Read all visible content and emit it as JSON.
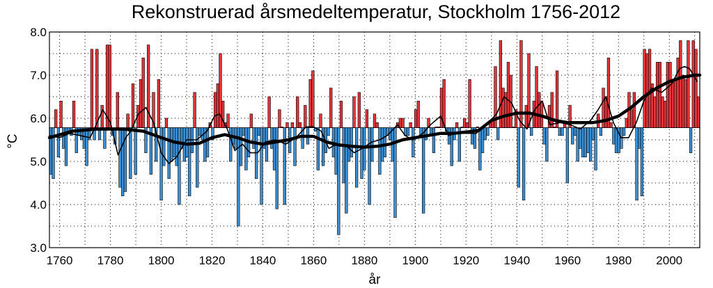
{
  "chart_data": {
    "type": "bar",
    "title": "Rekonstruerad årsmedeltemperatur, Stockholm 1756-2012",
    "xlabel": "år",
    "ylabel": "°C",
    "xlim": [
      1756,
      2012
    ],
    "ylim": [
      3.0,
      8.0
    ],
    "baseline": 5.78,
    "grid": true,
    "x_ticks": [
      "1760",
      "1780",
      "1800",
      "1820",
      "1840",
      "1860",
      "1880",
      "1900",
      "1920",
      "1940",
      "1960",
      "1980",
      "2000"
    ],
    "y_ticks": [
      "3.0",
      "4.0",
      "5.0",
      "6.0",
      "7.0",
      "8.0"
    ],
    "colors": {
      "above": "#e0353b",
      "below": "#3d8fd1",
      "bar_edge": "#000000",
      "grid": "#000000"
    },
    "series": [
      {
        "type": "bar",
        "x_start": 1756,
        "values": [
          4.7,
          4.6,
          6.2,
          5.1,
          6.4,
          5.3,
          4.9,
          5.7,
          5.6,
          6.4,
          5.2,
          5.6,
          5.5,
          5.3,
          4.9,
          5.5,
          7.6,
          5.5,
          7.6,
          5.5,
          6.3,
          5.3,
          7.7,
          7.7,
          5.6,
          5.4,
          6.6,
          4.4,
          4.2,
          4.3,
          6.1,
          4.6,
          6.8,
          4.7,
          6.3,
          6.9,
          7.4,
          5.2,
          7.7,
          4.7,
          6.6,
          5.0,
          6.9,
          4.1,
          4.9,
          6.0,
          4.6,
          5.0,
          5.1,
          4.9,
          4.0,
          5.3,
          5.0,
          5.1,
          4.2,
          5.2,
          6.6,
          4.4,
          5.6,
          5.5,
          5.0,
          5.1,
          5.9,
          5.5,
          6.6,
          6.8,
          7.5,
          6.4,
          5.9,
          6.1,
          5.0,
          5.4,
          5.3,
          3.5,
          4.9,
          5.6,
          4.8,
          5.1,
          6.1,
          5.3,
          4.6,
          5.6,
          4.0,
          5.3,
          5.0,
          6.5,
          5.3,
          4.8,
          3.9,
          6.2,
          5.8,
          4.0,
          5.9,
          5.2,
          5.9,
          4.9,
          6.5,
          5.9,
          5.3,
          6.3,
          5.4,
          6.9,
          7.1,
          5.7,
          4.8,
          6.1,
          4.9,
          5.2,
          5.6,
          6.7,
          5.1,
          4.7,
          3.3,
          6.4,
          4.5,
          3.8,
          5.0,
          5.1,
          6.5,
          4.4,
          6.6,
          4.6,
          4.8,
          6.2,
          4.0,
          5.0,
          6.1,
          5.9,
          4.7,
          5.0,
          5.1,
          5.6,
          5.5,
          5.0,
          3.7,
          5.9,
          6.0,
          6.0,
          5.6,
          5.6,
          5.9,
          5.1,
          6.2,
          6.4,
          5.6,
          3.8,
          5.5,
          6.0,
          5.6,
          5.2,
          5.8,
          5.8,
          6.7,
          6.9,
          5.7,
          5.4,
          4.9,
          5.5,
          5.9,
          5.0,
          5.8,
          6.0,
          5.9,
          6.9,
          5.4,
          5.3,
          5.8,
          4.8,
          5.2,
          5.5,
          5.6,
          5.9,
          6.0,
          7.2,
          5.5,
          7.8,
          6.7,
          6.6,
          7.3,
          7.0,
          5.8,
          6.2,
          4.4,
          7.8,
          4.1,
          6.3,
          7.5,
          5.6,
          6.4,
          7.2,
          6.6,
          6.4,
          5.4,
          5.0,
          6.3,
          6.6,
          5.8,
          7.1,
          5.6,
          5.6,
          5.9,
          4.5,
          6.3,
          5.4,
          5.6,
          5.0,
          5.3,
          5.1,
          5.1,
          5.2,
          5.0,
          5.5,
          4.8,
          6.1,
          5.6,
          6.7,
          6.5,
          7.4,
          5.9,
          5.4,
          5.2,
          5.2,
          5.3,
          5.6,
          6.0,
          6.6,
          6.2,
          6.6,
          4.1,
          5.3,
          4.2,
          7.6,
          7.5,
          7.6,
          6.8,
          6.5,
          7.3,
          7.3,
          6.5,
          6.4,
          7.3,
          7.3,
          6.9,
          6.9,
          7.4,
          7.8,
          7.0,
          6.9,
          7.8,
          5.2,
          7.8,
          7.6,
          6.5
        ]
      },
      {
        "type": "line",
        "style": "thin",
        "x": [
          1756,
          1760,
          1764,
          1768,
          1772,
          1774,
          1777,
          1780,
          1783,
          1786,
          1788,
          1791,
          1794,
          1797,
          1800,
          1803,
          1806,
          1810,
          1814,
          1818,
          1821,
          1823,
          1826,
          1829,
          1832,
          1835,
          1838,
          1841,
          1845,
          1849,
          1853,
          1857,
          1860,
          1863,
          1866,
          1869,
          1873,
          1876,
          1879,
          1883,
          1886,
          1889,
          1893,
          1896,
          1899,
          1903,
          1906,
          1910,
          1913,
          1916,
          1920,
          1924,
          1928,
          1932,
          1935,
          1938,
          1941,
          1944,
          1947,
          1950,
          1953,
          1957,
          1961,
          1965,
          1969,
          1972,
          1975,
          1978,
          1981,
          1984,
          1987,
          1990,
          1993,
          1997,
          2001,
          2004,
          2006,
          2008,
          2011
        ],
        "values": [
          5.6,
          5.55,
          5.65,
          5.6,
          5.55,
          5.8,
          6.2,
          5.9,
          5.15,
          5.55,
          5.7,
          6.1,
          6.25,
          5.9,
          5.2,
          4.95,
          5.1,
          5.5,
          5.5,
          5.7,
          6.05,
          6.1,
          5.75,
          5.25,
          5.4,
          5.2,
          5.2,
          5.45,
          5.5,
          5.4,
          5.55,
          5.8,
          5.8,
          5.7,
          5.3,
          5.4,
          5.35,
          5.2,
          5.3,
          5.45,
          5.5,
          5.6,
          5.85,
          5.6,
          5.5,
          5.65,
          5.85,
          6.05,
          5.6,
          5.65,
          5.65,
          5.65,
          5.85,
          6.1,
          6.5,
          6.35,
          5.95,
          5.75,
          6.2,
          6.4,
          5.85,
          5.9,
          5.85,
          5.75,
          5.95,
          6.2,
          6.5,
          5.9,
          5.55,
          5.55,
          5.9,
          6.4,
          6.7,
          6.6,
          6.8,
          7.15,
          7.2,
          7.15,
          6.85
        ]
      },
      {
        "type": "line",
        "style": "thick",
        "x": [
          1756,
          1765,
          1775,
          1785,
          1793,
          1800,
          1805,
          1810,
          1815,
          1820,
          1825,
          1830,
          1835,
          1840,
          1845,
          1850,
          1855,
          1860,
          1865,
          1870,
          1875,
          1880,
          1885,
          1890,
          1895,
          1900,
          1905,
          1910,
          1915,
          1920,
          1925,
          1930,
          1935,
          1940,
          1945,
          1950,
          1955,
          1960,
          1965,
          1970,
          1975,
          1980,
          1985,
          1990,
          1995,
          2000,
          2005,
          2010,
          2012
        ],
        "values": [
          5.55,
          5.7,
          5.75,
          5.75,
          5.7,
          5.55,
          5.45,
          5.4,
          5.42,
          5.55,
          5.62,
          5.55,
          5.45,
          5.4,
          5.45,
          5.5,
          5.58,
          5.58,
          5.45,
          5.38,
          5.35,
          5.33,
          5.35,
          5.4,
          5.5,
          5.55,
          5.6,
          5.65,
          5.65,
          5.68,
          5.72,
          5.95,
          6.05,
          6.12,
          6.12,
          6.05,
          5.95,
          5.9,
          5.9,
          5.9,
          5.95,
          6.05,
          6.25,
          6.5,
          6.7,
          6.85,
          6.95,
          7.0,
          7.0
        ]
      }
    ]
  }
}
